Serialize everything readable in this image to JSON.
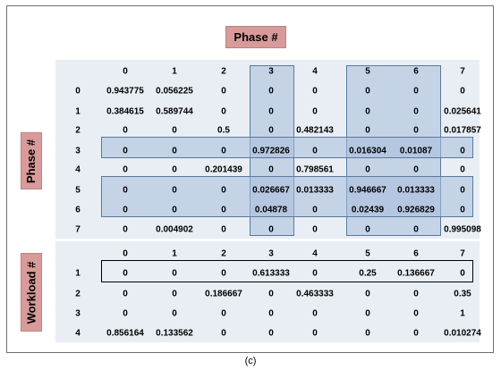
{
  "title": "Phase #",
  "caption": "(c)",
  "row_axis_label_top": "Phase #",
  "row_axis_label_bottom": "Workload #",
  "colors": {
    "badge": "#d99a9a",
    "panel": "#e9edf4",
    "highlight": "#a8beda",
    "highlight_border": "#5a7a9e"
  },
  "phase_table": {
    "columns": [
      "0",
      "1",
      "2",
      "3",
      "4",
      "5",
      "6",
      "7"
    ],
    "rows": [
      {
        "label": "0",
        "values": [
          "0.943775",
          "0.056225",
          "0",
          "0",
          "0",
          "0",
          "0",
          "0"
        ]
      },
      {
        "label": "1",
        "values": [
          "0.384615",
          "0.589744",
          "0",
          "0",
          "0",
          "0",
          "0",
          "0.025641"
        ]
      },
      {
        "label": "2",
        "values": [
          "0",
          "0",
          "0.5",
          "0",
          "0.482143",
          "0",
          "0",
          "0.017857"
        ]
      },
      {
        "label": "3",
        "values": [
          "0",
          "0",
          "0",
          "0.972826",
          "0",
          "0.016304",
          "0.01087",
          "0"
        ]
      },
      {
        "label": "4",
        "values": [
          "0",
          "0",
          "0.201439",
          "0",
          "0.798561",
          "0",
          "0",
          "0"
        ]
      },
      {
        "label": "5",
        "values": [
          "0",
          "0",
          "0",
          "0.026667",
          "0.013333",
          "0.946667",
          "0.013333",
          "0"
        ]
      },
      {
        "label": "6",
        "values": [
          "0",
          "0",
          "0",
          "0.04878",
          "0",
          "0.02439",
          "0.926829",
          "0"
        ]
      },
      {
        "label": "7",
        "values": [
          "0",
          "0.004902",
          "0",
          "0",
          "0",
          "0",
          "0",
          "0.995098"
        ]
      }
    ]
  },
  "workload_table": {
    "columns": [
      "0",
      "1",
      "2",
      "3",
      "4",
      "5",
      "6",
      "7"
    ],
    "rows": [
      {
        "label": "1",
        "values": [
          "0",
          "0",
          "0",
          "0.613333",
          "0",
          "0.25",
          "0.136667",
          "0"
        ]
      },
      {
        "label": "2",
        "values": [
          "0",
          "0",
          "0.186667",
          "0",
          "0.463333",
          "0",
          "0",
          "0.35"
        ]
      },
      {
        "label": "3",
        "values": [
          "0",
          "0",
          "0",
          "0",
          "0",
          "0",
          "0",
          "1"
        ]
      },
      {
        "label": "4",
        "values": [
          "0.856164",
          "0.133562",
          "0",
          "0",
          "0",
          "0",
          "0",
          "0.010274"
        ]
      }
    ]
  }
}
